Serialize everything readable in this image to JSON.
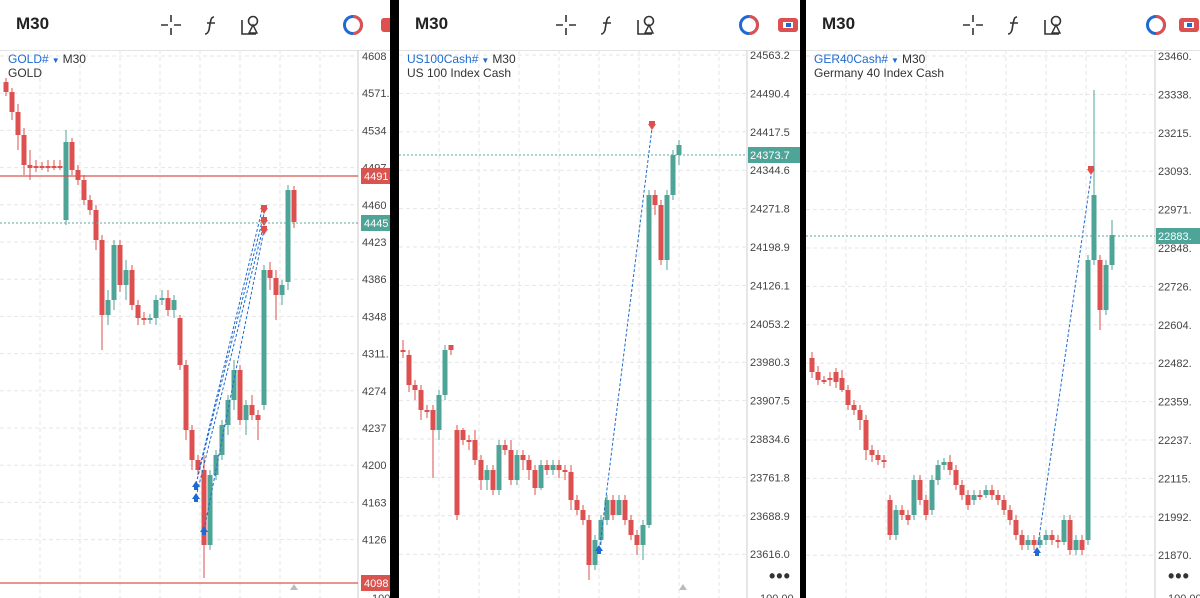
{
  "colors": {
    "up": "#4ea597",
    "down": "#de4f4f",
    "bid_line": "#5aa89b",
    "ask_line": "#d9534f",
    "link": "#1e6ad2"
  },
  "panels": [
    {
      "timeframe": "M30",
      "symbol": "GOLD#",
      "timeframe_small": "M30",
      "description": "GOLD",
      "price_ticks": [
        "4608",
        "4571.",
        "4534",
        "4497",
        "4460",
        "4423",
        "4386",
        "4348",
        "4311.",
        "4274",
        "4237",
        "4200",
        "4163",
        "4126",
        "4098"
      ],
      "red_tag": "4491",
      "green_tag": "4445",
      "bottom_tag": "4098",
      "axis_bottom_partial": "100.00",
      "show_more": false
    },
    {
      "timeframe": "M30",
      "symbol": "US100Cash#",
      "timeframe_small": "M30",
      "description": "US 100 Index Cash",
      "price_ticks": [
        "24563.2",
        "24490.4",
        "24417.5",
        "24344.6",
        "24271.8",
        "24198.9",
        "24126.1",
        "24053.2",
        "23980.3",
        "23907.5",
        "23834.6",
        "23761.8",
        "23688.9",
        "23616.0"
      ],
      "green_tag": "24373.7",
      "axis_bottom_partial": "100.00",
      "more_label": "•••",
      "show_more": true
    },
    {
      "timeframe": "M30",
      "symbol": "GER40Cash#",
      "timeframe_small": "M30",
      "description": "Germany 40 Index Cash",
      "price_ticks": [
        "23460.",
        "23338.",
        "23215.",
        "23093.",
        "22971.",
        "22848.",
        "22726.",
        "22604.",
        "22482.",
        "22359.",
        "22237.",
        "22115.",
        "21992.",
        "21870."
      ],
      "green_tag": "22883.",
      "axis_bottom_partial": "100.00",
      "more_label": "•••",
      "show_more": true
    }
  ],
  "icons": [
    "crosshair-icon",
    "function-icon",
    "objects-icon",
    "account-icon",
    "trade-icon"
  ]
}
